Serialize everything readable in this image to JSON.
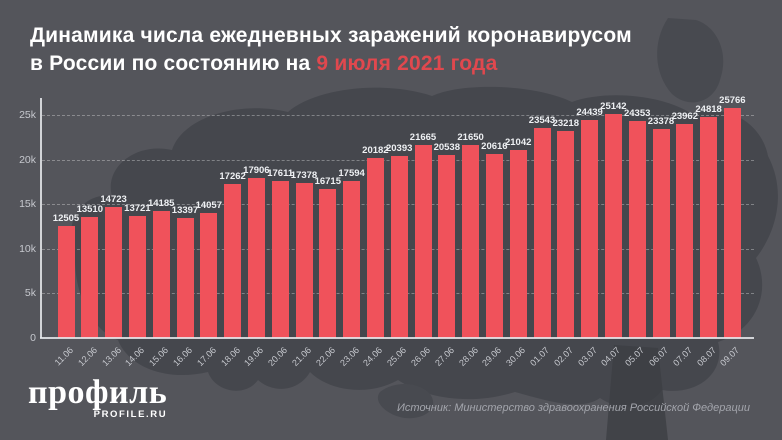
{
  "title": {
    "line1": "Динамика числа ежедневных заражений коронавирусом",
    "line2_prefix": "в России по состоянию на ",
    "line2_highlight": "9 июля 2021 года"
  },
  "branding": {
    "logo_text": "профиль",
    "logo_sub": "PROFILE.RU"
  },
  "source": "Источник: Министерство здравоохранения Российской Федерации",
  "colors": {
    "background": "#54555b",
    "map_silhouette": "#45474d",
    "bar": "#f0525b",
    "accent_red": "#e0484e",
    "text_primary": "#ffffff",
    "text_muted": "#c6c8ce",
    "axis_line": "#e9ebee"
  },
  "chart_data": {
    "type": "bar",
    "title": "Динамика числа ежедневных заражений коронавирусом в России по состоянию на 9 июля 2021 года",
    "categories": [
      "11.06",
      "12.06",
      "13.06",
      "14.06",
      "15.06",
      "16.06",
      "17.06",
      "18.06",
      "19.06",
      "20.06",
      "21.06",
      "22.06",
      "23.06",
      "24.06",
      "25.06",
      "26.06",
      "27.06",
      "28.06",
      "29.06",
      "30.06",
      "01.07",
      "02.07",
      "03.07",
      "04.07",
      "05.07",
      "06.07",
      "07.07",
      "08.07",
      "09.07"
    ],
    "values": [
      12505,
      13510,
      14723,
      13721,
      14185,
      13397,
      14057,
      17262,
      17906,
      17611,
      17378,
      16715,
      17594,
      20182,
      20393,
      21665,
      20538,
      21650,
      20616,
      21042,
      23543,
      23218,
      24439,
      25142,
      24353,
      23378,
      23962,
      24818,
      25766
    ],
    "value_labels": true,
    "xlabel": "",
    "ylabel": "",
    "yticks": [
      "0",
      "5k",
      "10k",
      "15k",
      "20k",
      "25k"
    ],
    "ytick_step": 5000,
    "ylim": [
      0,
      26500
    ],
    "grid": "horizontal-dashed",
    "legend": "none"
  }
}
